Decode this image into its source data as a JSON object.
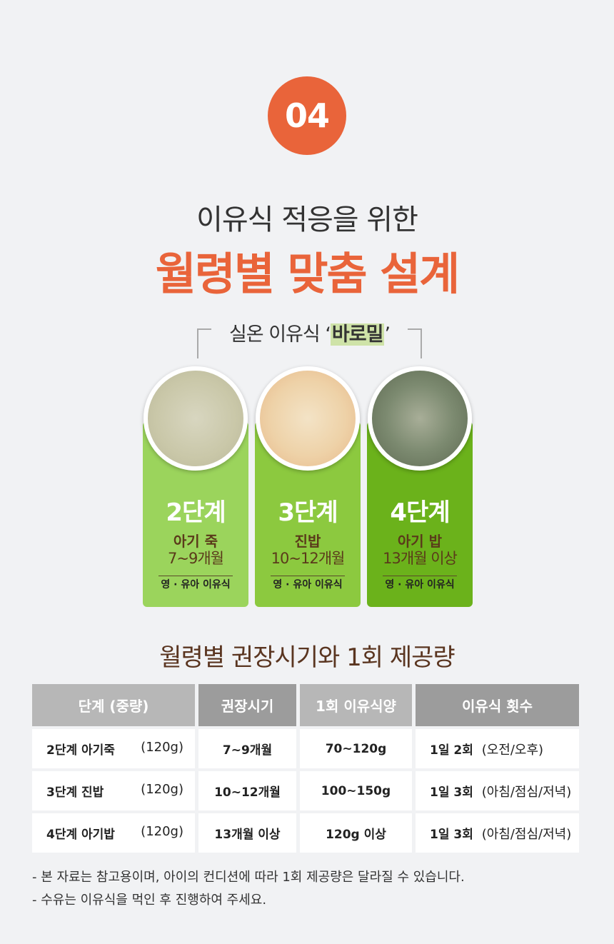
{
  "badge": "04",
  "title_line1": "이유식 적응을 위한",
  "title_line2": "월령별 맞춤 설계",
  "brand_prefix": "실온 이유식 ‘",
  "brand_name": "바로밀",
  "brand_suffix": "’",
  "colors": {
    "accent": "#e9643a",
    "card2": "#9bd45c",
    "card3": "#8cc93f",
    "card4": "#6bb21b"
  },
  "cards": [
    {
      "stage": "2단계",
      "name": "아기 죽",
      "age": "7~9개월",
      "sub": "영 · 유아 이유식"
    },
    {
      "stage": "3단계",
      "name": "진밥",
      "age": "10~12개월",
      "sub": "영 · 유아 이유식"
    },
    {
      "stage": "4단계",
      "name": "아기 밥",
      "age": "13개월 이상",
      "sub": "영 · 유아 이유식"
    }
  ],
  "table_title": "월령별 권장시기와 1회 제공량",
  "table": {
    "headers": [
      "단계 (중량)",
      "권장시기",
      "1회 이유식양",
      "이유식 횟수"
    ],
    "rows": [
      {
        "stage": "2단계 아기죽",
        "weight": "(120g)",
        "period": "7~9개월",
        "amount": "70~120g",
        "count": "1일 2회",
        "times": "(오전/오후)"
      },
      {
        "stage": "3단계 진밥",
        "weight": "(120g)",
        "period": "10~12개월",
        "amount": "100~150g",
        "count": "1일 3회",
        "times": "(아침/점심/저녁)"
      },
      {
        "stage": "4단계 아기밥",
        "weight": "(120g)",
        "period": "13개월 이상",
        "amount": "120g 이상",
        "count": "1일 3회",
        "times": "(아침/점심/저녁)"
      }
    ]
  },
  "notes": [
    "- 본 자료는 참고용이며, 아이의 컨디션에 따라 1회 제공량은 달라질 수 있습니다.",
    "- 수유는 이유식을 먹인 후 진행하여 주세요."
  ]
}
